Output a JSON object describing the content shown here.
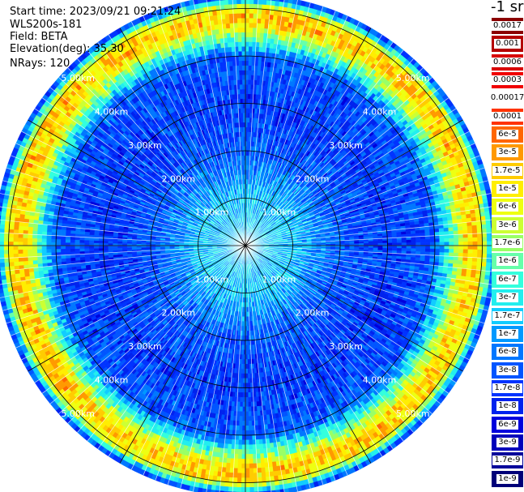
{
  "header": {
    "start_time": "Start time: 2023/09/21 09:21:24",
    "device": "WLS200s-181",
    "field": "Field: BETA",
    "elevation": "Elevation(deg): 35.30",
    "nrays": "NRays: 120"
  },
  "colorbar": {
    "unit": "-1 sr",
    "labels": [
      "0.0017",
      "0.001",
      "0.0006",
      "0.0003",
      "0.00017",
      "0.0001",
      "6e-5",
      "3e-5",
      "1.7e-5",
      "1e-5",
      "6e-6",
      "3e-6",
      "1.7e-6",
      "1e-6",
      "6e-7",
      "3e-7",
      "1.7e-7",
      "1e-7",
      "6e-8",
      "3e-8",
      "1.7e-8",
      "1e-8",
      "6e-9",
      "3e-9",
      "1.7e-9",
      "1e-9"
    ],
    "colors": [
      "#8b0000",
      "#b40000",
      "#d80000",
      "#f00000",
      "#ffffff",
      "#ff3300",
      "#ff6600",
      "#ff9900",
      "#ffcc00",
      "#ffee00",
      "#eeff11",
      "#ccff33",
      "#99ff66",
      "#66ffaa",
      "#33ffdd",
      "#22eeee",
      "#11ccff",
      "#0099ff",
      "#0077ff",
      "#0055ff",
      "#0033ff",
      "#0022ee",
      "#0000dd",
      "#0000bb",
      "#00009a",
      "#000078"
    ]
  },
  "chart_data": {
    "type": "heatmap",
    "projection": "polar (PPI scan)",
    "quantity": "BETA",
    "unit": "-1 sr",
    "nrays": 120,
    "range_rings_km": [
      1,
      2,
      3,
      4,
      5
    ],
    "range_ring_labels": [
      "1.00km",
      "2.00km",
      "3.00km",
      "4.00km",
      "5.00km"
    ],
    "max_range_km": 5.3,
    "radial_profile": {
      "range_km": [
        0.0,
        1.0,
        2.0,
        3.0,
        4.0,
        4.7,
        5.0,
        5.3
      ],
      "typical_beta": [
        "1.7e-7",
        "1.7e-7",
        "3e-8",
        "1.7e-8",
        "3e-8",
        "1.7e-5",
        "1e-5",
        "1e-8"
      ]
    },
    "colorbar_scale": "log",
    "colorbar_range": [
      "1e-9",
      "0.0017"
    ]
  }
}
